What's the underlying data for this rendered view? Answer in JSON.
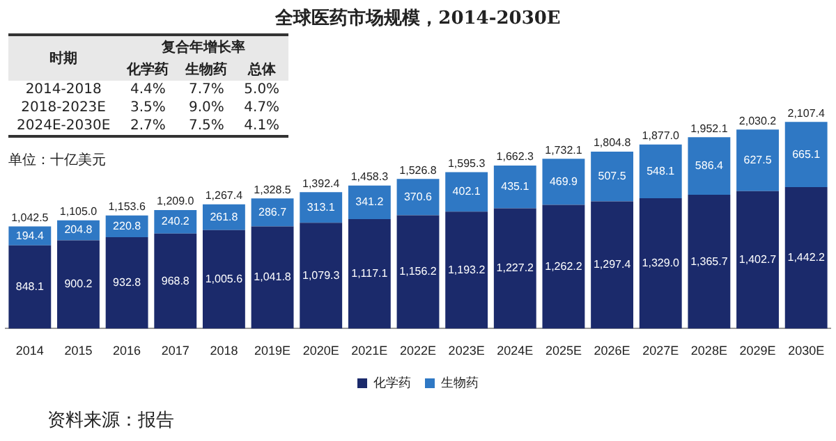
{
  "chart_data": {
    "type": "bar",
    "title": "全球医药市场规模，2014-2030E",
    "stacked": true,
    "data_labels": true,
    "legend": "bottom",
    "categories": [
      "2014",
      "2015",
      "2016",
      "2017",
      "2018",
      "2019E",
      "2020E",
      "2021E",
      "2022E",
      "2023E",
      "2024E",
      "2025E",
      "2026E",
      "2027E",
      "2028E",
      "2029E",
      "2030E"
    ],
    "series": [
      {
        "name": "化学药",
        "color": "#1b2a6b",
        "values": [
          848.1,
          900.2,
          932.8,
          968.8,
          1005.6,
          1041.8,
          1079.3,
          1117.1,
          1156.2,
          1193.2,
          1227.2,
          1262.2,
          1297.4,
          1329.0,
          1365.7,
          1402.7,
          1442.2
        ],
        "value_labels": [
          "848.1",
          "900.2",
          "932.8",
          "968.8",
          "1,005.6",
          "1,041.8",
          "1,079.3",
          "1,117.1",
          "1,156.2",
          "1,193.2",
          "1,227.2",
          "1,262.2",
          "1,297.4",
          "1,329.0",
          "1,365.7",
          "1,402.7",
          "1,442.2"
        ]
      },
      {
        "name": "生物药",
        "color": "#2f78c4",
        "values": [
          194.4,
          204.8,
          220.8,
          240.2,
          261.8,
          286.7,
          313.1,
          341.2,
          370.6,
          402.1,
          435.1,
          469.9,
          507.5,
          548.1,
          586.4,
          627.5,
          665.1
        ],
        "value_labels": [
          "194.4",
          "204.8",
          "220.8",
          "240.2",
          "261.8",
          "286.7",
          "313.1",
          "341.2",
          "370.6",
          "402.1",
          "435.1",
          "469.9",
          "507.5",
          "548.1",
          "586.4",
          "627.5",
          "665.1"
        ]
      }
    ],
    "totals": [
      "1,042.5",
      "1,105.0",
      "1,153.6",
      "1,209.0",
      "1,267.4",
      "1,328.5",
      "1,392.4",
      "1,458.3",
      "1,526.8",
      "1,595.3",
      "1,662.3",
      "1,732.1",
      "1,804.8",
      "1,877.0",
      "1,952.1",
      "2,030.2",
      "2,107.4"
    ],
    "annotations": [
      "单位：十亿美元",
      "资料来源：报告",
      "时期",
      "复合年增长率",
      "化学药",
      "生物药",
      "总体",
      "2014-2018",
      "4.4%",
      "7.7%",
      "5.0%",
      "2018-2023E",
      "3.5%",
      "9.0%",
      "4.7%",
      "2024E-2030E",
      "2.7%",
      "7.5%",
      "4.1%"
    ]
  }
}
